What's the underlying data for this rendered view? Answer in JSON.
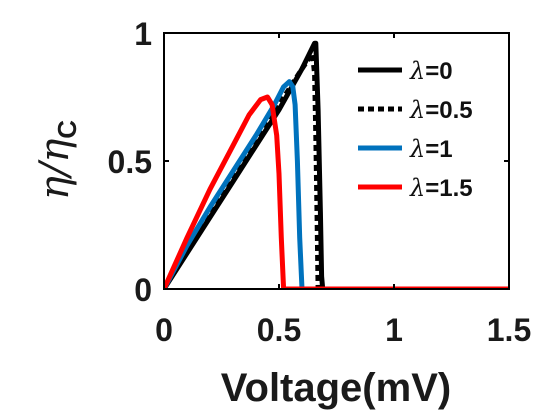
{
  "chart_data": {
    "type": "line",
    "title": "",
    "xlabel": "Voltage(mV)",
    "ylabel": {
      "main": "η/η",
      "sub": "C"
    },
    "xlim": [
      0,
      1.5
    ],
    "ylim": [
      0,
      1
    ],
    "xticks": [
      {
        "value": 0,
        "label": "0"
      },
      {
        "value": 0.5,
        "label": "0.5"
      },
      {
        "value": 1,
        "label": "1"
      },
      {
        "value": 1.5,
        "label": "1.5"
      }
    ],
    "yticks": [
      {
        "value": 0,
        "label": "0"
      },
      {
        "value": 0.5,
        "label": "0.5"
      },
      {
        "value": 1,
        "label": "1"
      }
    ],
    "grid": false,
    "legend_position": "top-right",
    "series": [
      {
        "name": "λ=0",
        "label_symbol": "λ",
        "label_value": "=0",
        "color": "#000000",
        "dash": "solid",
        "x": [
          0,
          0.1,
          0.2,
          0.3,
          0.4,
          0.5,
          0.6,
          0.655,
          0.66,
          0.67,
          0.68,
          0.685,
          0.69,
          1.5
        ],
        "y": [
          0,
          0.14,
          0.28,
          0.42,
          0.56,
          0.7,
          0.86,
          0.96,
          0.96,
          0.7,
          0.3,
          0.05,
          0,
          0
        ]
      },
      {
        "name": "λ=0.5",
        "label_symbol": "λ",
        "label_value": "=0.5",
        "color": "#000000",
        "dash": "dotted",
        "x": [
          0,
          0.1,
          0.2,
          0.3,
          0.4,
          0.5,
          0.6,
          0.645,
          0.655,
          0.66,
          0.665,
          0.67,
          1.5
        ],
        "y": [
          0,
          0.155,
          0.3,
          0.44,
          0.58,
          0.72,
          0.86,
          0.92,
          0.84,
          0.6,
          0.3,
          0,
          0
        ]
      },
      {
        "name": "λ=1",
        "label_symbol": "λ",
        "label_value": "=1",
        "color": "#0072bd",
        "dash": "solid",
        "x": [
          0,
          0.1,
          0.2,
          0.3,
          0.4,
          0.48,
          0.52,
          0.545,
          0.56,
          0.57,
          0.58,
          0.59,
          0.6,
          1.5
        ],
        "y": [
          0,
          0.17,
          0.32,
          0.46,
          0.6,
          0.72,
          0.79,
          0.81,
          0.79,
          0.72,
          0.5,
          0.2,
          0,
          0
        ]
      },
      {
        "name": "λ=1.5",
        "label_symbol": "λ",
        "label_value": "=1.5",
        "color": "#ff0000",
        "dash": "solid",
        "x": [
          0,
          0.1,
          0.2,
          0.3,
          0.37,
          0.42,
          0.45,
          0.47,
          0.49,
          0.5,
          0.51,
          0.52,
          1.5
        ],
        "y": [
          0,
          0.2,
          0.39,
          0.56,
          0.68,
          0.74,
          0.75,
          0.72,
          0.6,
          0.45,
          0.2,
          0,
          0
        ]
      }
    ]
  }
}
